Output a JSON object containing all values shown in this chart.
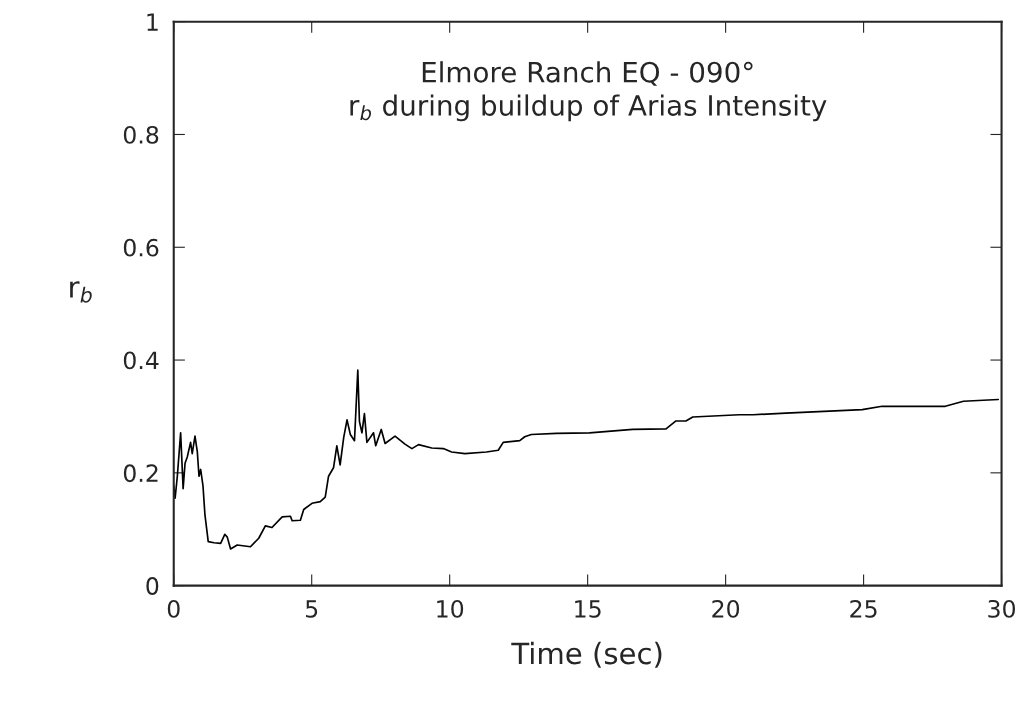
{
  "chart_data": {
    "type": "line",
    "title": "Elmore Ranch EQ - 090°\nr$_{b}$ during buildup of Arias Intensity",
    "xlabel": "Time (sec)",
    "ylabel": "r$_{b}$",
    "xlim": [
      0,
      30
    ],
    "xticks": [
      0,
      5,
      10,
      15,
      20,
      25,
      30
    ],
    "ylim": [
      0,
      1
    ],
    "yticks": [
      0,
      0.2,
      0.4,
      0.6,
      0.8,
      1
    ],
    "grid": false,
    "legend": false,
    "marker": "none",
    "line_style": "solid",
    "series": [
      {
        "color": "#000000",
        "x": [
          0,
          0.05,
          0.13,
          0.25,
          0.34,
          0.41,
          0.49,
          0.61,
          0.67,
          0.77,
          0.855,
          0.915,
          0.975,
          1.06,
          1.13,
          1.25,
          1.46,
          1.7,
          1.85,
          1.94,
          2.06,
          2.3,
          2.78,
          3.08,
          3.32,
          3.56,
          3.93,
          4.23,
          4.29,
          4.59,
          4.71,
          5.01,
          5.31,
          5.49,
          5.61,
          5.79,
          5.91,
          6.03,
          6.16,
          6.28,
          6.4,
          6.55,
          6.67,
          6.73,
          6.82,
          6.91,
          7.0,
          7.24,
          7.32,
          7.52,
          7.66,
          8.02,
          8.38,
          8.63,
          8.87,
          9.35,
          9.77,
          10.07,
          10.55,
          11.33,
          11.76,
          11.94,
          12.54,
          12.72,
          12.96,
          13.87,
          15.07,
          16.63,
          17.84,
          18.2,
          18.56,
          18.81,
          20.49,
          21.0,
          22.18,
          24.95,
          25.67,
          27.96,
          28.62,
          29.88
        ],
        "values": [
          0.177,
          0.155,
          0.194,
          0.271,
          0.172,
          0.217,
          0.228,
          0.254,
          0.234,
          0.265,
          0.237,
          0.194,
          0.206,
          0.177,
          0.126,
          0.078,
          0.076,
          0.075,
          0.091,
          0.086,
          0.065,
          0.072,
          0.069,
          0.084,
          0.106,
          0.103,
          0.122,
          0.123,
          0.115,
          0.116,
          0.135,
          0.146,
          0.149,
          0.157,
          0.194,
          0.209,
          0.248,
          0.214,
          0.263,
          0.294,
          0.268,
          0.257,
          0.382,
          0.291,
          0.271,
          0.305,
          0.254,
          0.271,
          0.248,
          0.277,
          0.252,
          0.265,
          0.251,
          0.243,
          0.25,
          0.244,
          0.243,
          0.237,
          0.234,
          0.237,
          0.24,
          0.254,
          0.257,
          0.264,
          0.268,
          0.27,
          0.271,
          0.277,
          0.278,
          0.292,
          0.292,
          0.299,
          0.303,
          0.303,
          0.306,
          0.312,
          0.318,
          0.318,
          0.327,
          0.33
        ]
      }
    ]
  }
}
